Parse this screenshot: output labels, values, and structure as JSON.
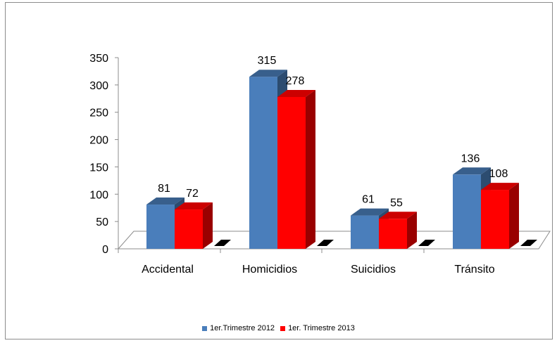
{
  "chart_data": {
    "type": "bar",
    "title": "",
    "xlabel": "",
    "ylabel": "",
    "categories": [
      "Accidental",
      "Homicidios",
      "Suicidios",
      "Tránsito"
    ],
    "series": [
      {
        "name": "1er.Trimestre 2012",
        "values": [
          81,
          315,
          61,
          136
        ],
        "color": "#4a7ebb"
      },
      {
        "name": "1er. Trimestre 2013",
        "values": [
          72,
          278,
          55,
          108
        ],
        "color": "#ff0000"
      }
    ],
    "ylim": [
      0,
      350
    ],
    "yticks": [
      0,
      50,
      100,
      150,
      200,
      250,
      300,
      350
    ],
    "grid": false,
    "legend": "bottom",
    "style": "3d-clustered-column"
  }
}
